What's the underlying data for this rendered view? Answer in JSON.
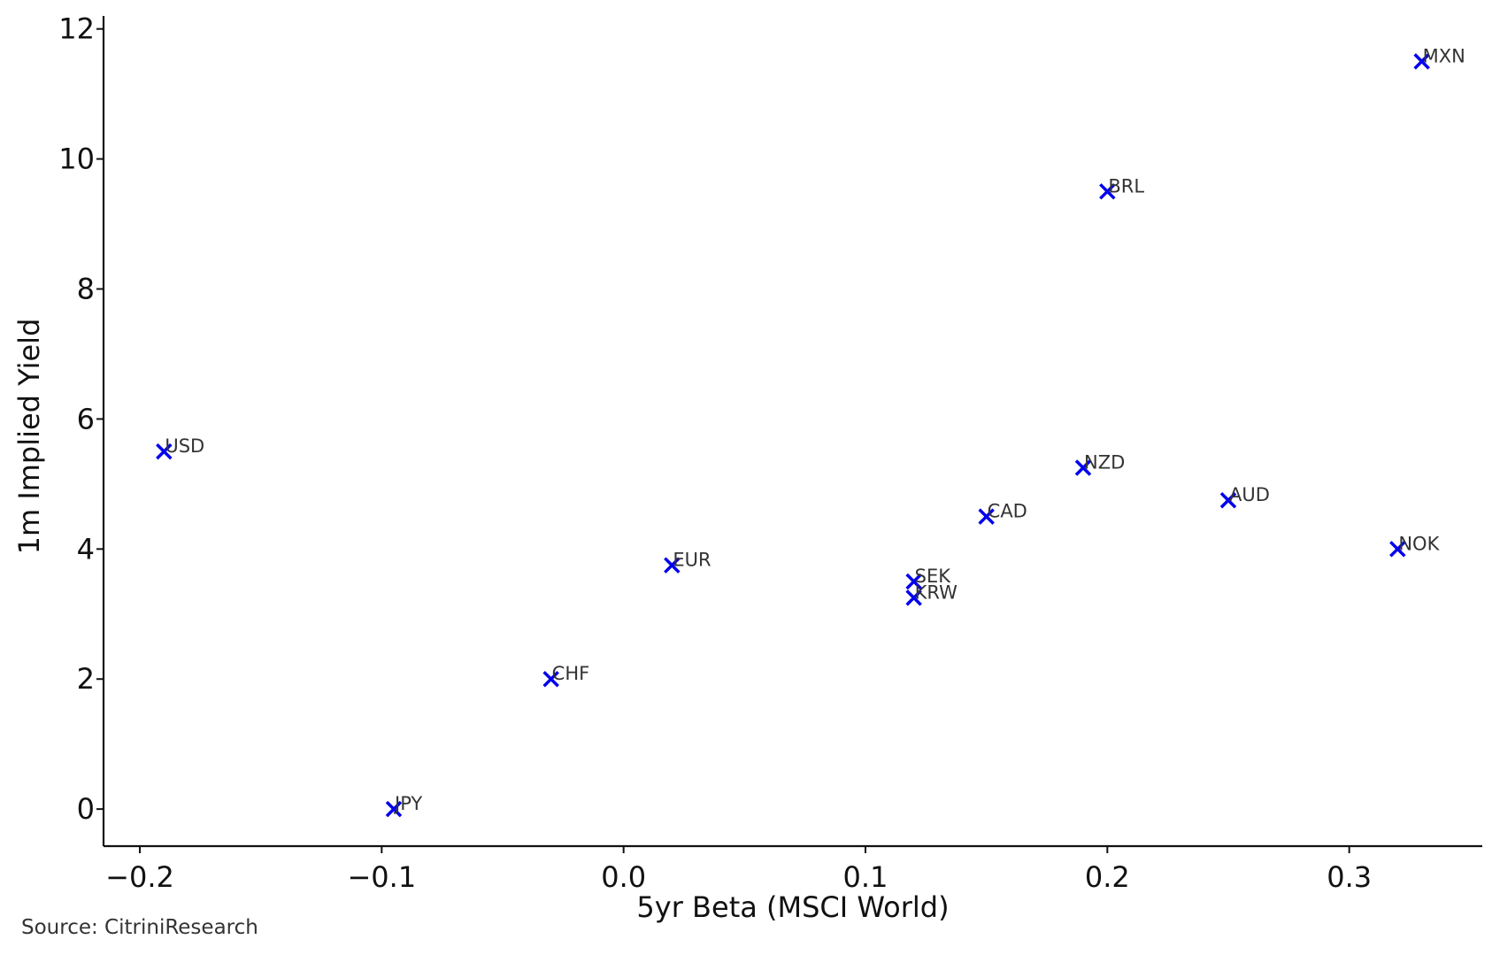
{
  "chart_data": {
    "type": "scatter",
    "title": "",
    "xlabel": "5yr Beta (MSCI World)",
    "ylabel": "1m Implied Yield",
    "xlim": [
      -0.215,
      0.355
    ],
    "ylim": [
      -0.57,
      12.2
    ],
    "xticks": [
      -0.2,
      -0.1,
      0.0,
      0.1,
      0.2,
      0.3
    ],
    "xtick_labels": [
      "−0.2",
      "−0.1",
      "0.0",
      "0.1",
      "0.2",
      "0.3"
    ],
    "yticks": [
      0,
      2,
      4,
      6,
      8,
      10,
      12
    ],
    "ytick_labels": [
      "0",
      "2",
      "4",
      "6",
      "8",
      "10",
      "12"
    ],
    "grid": false,
    "legend": "none",
    "marker": "x",
    "marker_color": "#0000ee",
    "points": [
      {
        "label": "USD",
        "x": -0.19,
        "y": 5.5
      },
      {
        "label": "JPY",
        "x": -0.095,
        "y": 0.0
      },
      {
        "label": "CHF",
        "x": -0.03,
        "y": 2.0
      },
      {
        "label": "EUR",
        "x": 0.02,
        "y": 3.75
      },
      {
        "label": "SEK",
        "x": 0.12,
        "y": 3.5
      },
      {
        "label": "KRW",
        "x": 0.12,
        "y": 3.25
      },
      {
        "label": "CAD",
        "x": 0.15,
        "y": 4.5
      },
      {
        "label": "NZD",
        "x": 0.19,
        "y": 5.25
      },
      {
        "label": "BRL",
        "x": 0.2,
        "y": 9.5
      },
      {
        "label": "AUD",
        "x": 0.25,
        "y": 4.75
      },
      {
        "label": "NOK",
        "x": 0.32,
        "y": 4.0
      },
      {
        "label": "MXN",
        "x": 0.33,
        "y": 11.5
      }
    ]
  },
  "footer": {
    "source": "Source: CitriniResearch"
  }
}
